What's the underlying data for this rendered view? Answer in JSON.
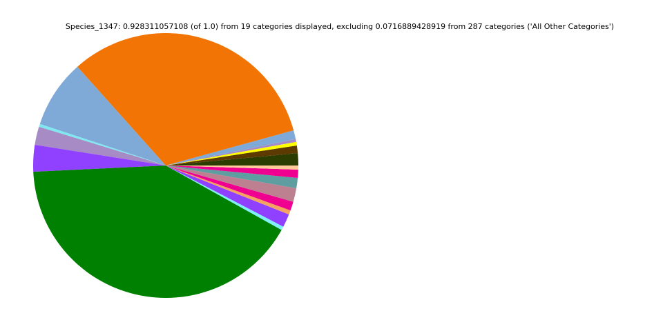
{
  "chart_data": {
    "type": "pie",
    "title": "Species_1347: 0.928311057108 (of 1.0) from 19 categories displayed, excluding 0.0716889428919 from 287 categories ('All Other Categories')",
    "start_angle": 0,
    "direction": "counterclockwise",
    "values": [
      0.0139,
      0.0085,
      0.0041,
      0.0031,
      0.0101,
      0.3001,
      0.0771,
      0.0034,
      0.0206,
      0.0302,
      0.382,
      0.0041,
      0.015,
      0.0049,
      0.0101,
      0.0155,
      0.0116,
      0.0093,
      0.0046
    ],
    "colors": [
      "#2b3d00",
      "#5c3a00",
      "#ffff00",
      "#a48ac7",
      "#7faad8",
      "#f27405",
      "#7faad8",
      "#7fe8f0",
      "#a68bc4",
      "#9040ff",
      "#008000",
      "#7ff0f8",
      "#9040ff",
      "#f4a460",
      "#f00090",
      "#bc8090",
      "#5f9ea0",
      "#f00090",
      "#ffcc99"
    ]
  }
}
